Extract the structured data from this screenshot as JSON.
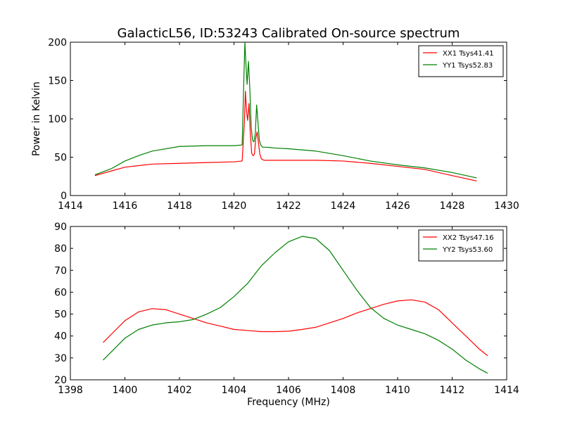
{
  "title": "GalacticL56, ID:53243 Calibrated On-source spectrum",
  "chart_data": [
    {
      "type": "line",
      "ylabel": "Power in Kelvin",
      "xlabel": "",
      "xlim": [
        1414,
        1430
      ],
      "ylim": [
        0,
        200
      ],
      "xticks": [
        1414,
        1416,
        1418,
        1420,
        1422,
        1424,
        1426,
        1428,
        1430
      ],
      "yticks": [
        0,
        50,
        100,
        150,
        200
      ],
      "grid": false,
      "legend_position": "top-right",
      "series": [
        {
          "name": "XX1 Tsys41.41",
          "color": "#ff0000",
          "x": [
            1414.9,
            1415.5,
            1416,
            1416.5,
            1417,
            1418,
            1419,
            1420,
            1420.3,
            1420.38,
            1420.42,
            1420.46,
            1420.5,
            1420.55,
            1420.6,
            1420.65,
            1420.7,
            1420.75,
            1420.8,
            1420.85,
            1420.9,
            1420.95,
            1421.0,
            1421.1,
            1421.3,
            1421.5,
            1422,
            1423,
            1424,
            1425,
            1426,
            1427,
            1428,
            1428.9
          ],
          "y": [
            26,
            32,
            37,
            39,
            41,
            42,
            43,
            44,
            45,
            95,
            136,
            110,
            98,
            120,
            80,
            55,
            52,
            54,
            75,
            83,
            68,
            54,
            48,
            46,
            46,
            46,
            46,
            46,
            45,
            42,
            38,
            34,
            26,
            19
          ]
        },
        {
          "name": "YY1 Tsys52.83",
          "color": "#008000",
          "x": [
            1414.9,
            1415.5,
            1416,
            1416.5,
            1417,
            1418,
            1419,
            1420,
            1420.3,
            1420.36,
            1420.4,
            1420.44,
            1420.48,
            1420.53,
            1420.58,
            1420.63,
            1420.68,
            1420.73,
            1420.78,
            1420.83,
            1420.88,
            1420.93,
            1420.98,
            1421.05,
            1421.2,
            1421.5,
            1422,
            1423,
            1424,
            1425,
            1426,
            1427,
            1428,
            1428.9
          ],
          "y": [
            27,
            35,
            45,
            52,
            58,
            64,
            65,
            65,
            66,
            150,
            200,
            170,
            145,
            175,
            140,
            90,
            72,
            70,
            80,
            118,
            95,
            72,
            66,
            63,
            63,
            62,
            61,
            58,
            52,
            45,
            40,
            36,
            30,
            23
          ]
        }
      ]
    },
    {
      "type": "line",
      "xlabel": "Frequency (MHz)",
      "ylabel": "",
      "xlim": [
        1398,
        1414
      ],
      "ylim": [
        20,
        90
      ],
      "xticks": [
        1398,
        1400,
        1402,
        1404,
        1406,
        1408,
        1410,
        1412,
        1414
      ],
      "yticks": [
        20,
        30,
        40,
        50,
        60,
        70,
        80,
        90
      ],
      "grid": false,
      "legend_position": "top-right",
      "series": [
        {
          "name": "XX2 Tsys47.16",
          "color": "#ff0000",
          "x": [
            1399.2,
            1399.6,
            1400,
            1400.5,
            1401,
            1401.5,
            1402,
            1402.5,
            1403,
            1403.5,
            1404,
            1404.5,
            1405,
            1405.5,
            1406,
            1406.5,
            1407,
            1407.5,
            1408,
            1408.5,
            1409,
            1409.5,
            1410,
            1410.5,
            1411,
            1411.5,
            1412,
            1412.5,
            1413,
            1413.3
          ],
          "y": [
            37,
            42,
            47,
            51,
            52.5,
            52,
            50,
            48,
            46,
            44.5,
            43,
            42.5,
            42,
            42,
            42.2,
            43,
            44,
            46,
            48,
            50.5,
            52.5,
            54.5,
            56,
            56.5,
            55.5,
            52,
            46,
            40,
            34,
            31
          ]
        },
        {
          "name": "YY2 Tsys53.60",
          "color": "#008000",
          "x": [
            1399.2,
            1399.6,
            1400,
            1400.5,
            1401,
            1401.5,
            1402,
            1402.5,
            1403,
            1403.5,
            1404,
            1404.5,
            1405,
            1405.5,
            1406,
            1406.5,
            1407,
            1407.5,
            1408,
            1408.5,
            1409,
            1409.5,
            1410,
            1410.5,
            1411,
            1411.5,
            1412,
            1412.5,
            1413,
            1413.3
          ],
          "y": [
            29,
            34,
            39,
            43,
            45,
            46,
            46.5,
            47.5,
            50,
            53,
            58,
            64,
            72,
            78,
            83,
            85.5,
            84.5,
            79,
            70,
            61,
            53,
            48,
            45,
            43,
            41,
            38,
            34,
            29,
            25,
            23
          ]
        }
      ]
    }
  ]
}
